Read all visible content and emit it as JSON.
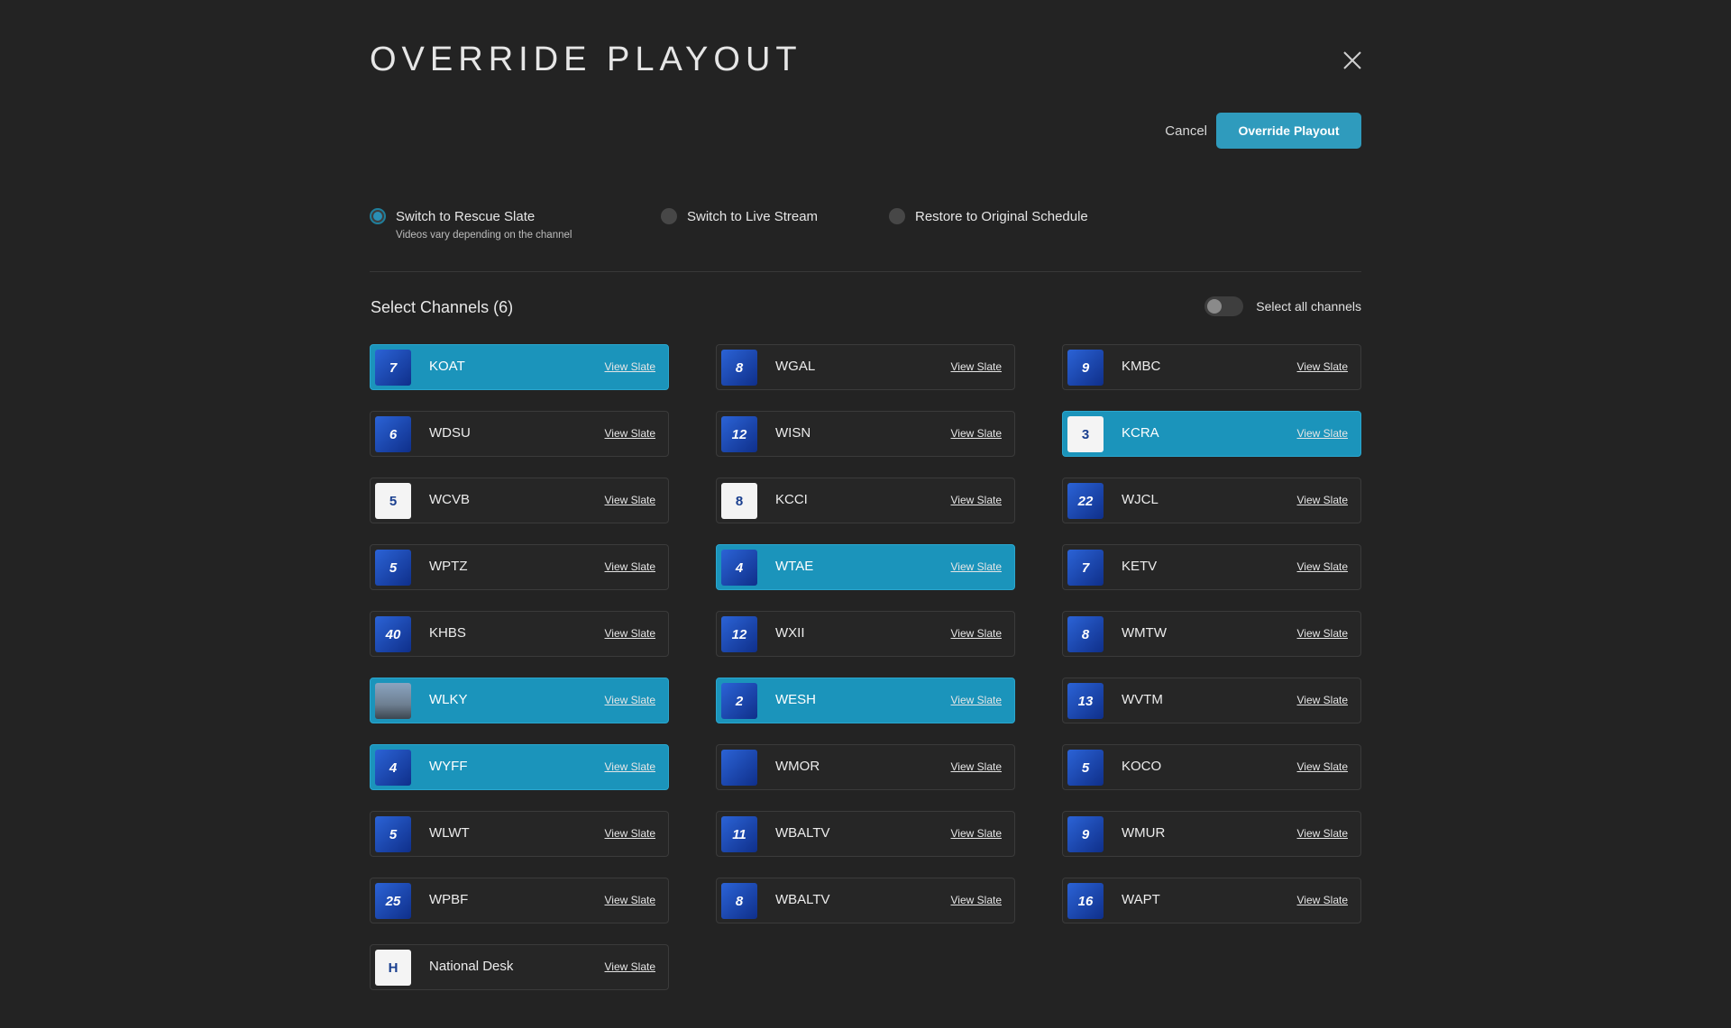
{
  "header": {
    "title": "OVERRIDE PLAYOUT"
  },
  "actions": {
    "cancel_label": "Cancel",
    "override_label": "Override Playout"
  },
  "options": [
    {
      "label": "Switch to Rescue Slate",
      "sublabel": "Videos vary depending on the channel",
      "selected": true
    },
    {
      "label": "Switch to Live Stream",
      "sublabel": "",
      "selected": false
    },
    {
      "label": "Restore to Original Schedule",
      "sublabel": "",
      "selected": false
    }
  ],
  "channels_section": {
    "title": "Select Channels (6)",
    "select_all_label": "Select all channels",
    "select_all_on": false
  },
  "view_slate_label": "View Slate",
  "colors": {
    "accent": "#2f9bbd",
    "selected_card": "#1b94bb",
    "background": "#232323"
  },
  "channels": [
    {
      "name": "KOAT",
      "logo_text": "7",
      "selected": true
    },
    {
      "name": "WGAL",
      "logo_text": "8",
      "selected": false
    },
    {
      "name": "KMBC",
      "logo_text": "9",
      "selected": false
    },
    {
      "name": "WDSU",
      "logo_text": "6",
      "selected": false
    },
    {
      "name": "WISN",
      "logo_text": "12",
      "selected": false
    },
    {
      "name": "KCRA",
      "logo_text": "3",
      "selected": true
    },
    {
      "name": "WCVB",
      "logo_text": "5",
      "selected": false
    },
    {
      "name": "KCCI",
      "logo_text": "8",
      "selected": false
    },
    {
      "name": "WJCL",
      "logo_text": "22",
      "selected": false
    },
    {
      "name": "WPTZ",
      "logo_text": "5",
      "selected": false
    },
    {
      "name": "WTAE",
      "logo_text": "4",
      "selected": true
    },
    {
      "name": "KETV",
      "logo_text": "7",
      "selected": false
    },
    {
      "name": "KHBS",
      "logo_text": "40",
      "selected": false
    },
    {
      "name": "WXII",
      "logo_text": "12",
      "selected": false
    },
    {
      "name": "WMTW",
      "logo_text": "8",
      "selected": false
    },
    {
      "name": "WLKY",
      "logo_text": "",
      "selected": true
    },
    {
      "name": "WESH",
      "logo_text": "2",
      "selected": true
    },
    {
      "name": "WVTM",
      "logo_text": "13",
      "selected": false
    },
    {
      "name": "WYFF",
      "logo_text": "4",
      "selected": true
    },
    {
      "name": "WMOR",
      "logo_text": "",
      "selected": false
    },
    {
      "name": "KOCO",
      "logo_text": "5",
      "selected": false
    },
    {
      "name": "WLWT",
      "logo_text": "5",
      "selected": false
    },
    {
      "name": "WBALTV",
      "logo_text": "11",
      "selected": false
    },
    {
      "name": "WMUR",
      "logo_text": "9",
      "selected": false
    },
    {
      "name": "WPBF",
      "logo_text": "25",
      "selected": false
    },
    {
      "name": "WBALTV",
      "logo_text": "8",
      "selected": false
    },
    {
      "name": "WAPT",
      "logo_text": "16",
      "selected": false
    },
    {
      "name": "National Desk",
      "logo_text": "H",
      "selected": false
    }
  ]
}
